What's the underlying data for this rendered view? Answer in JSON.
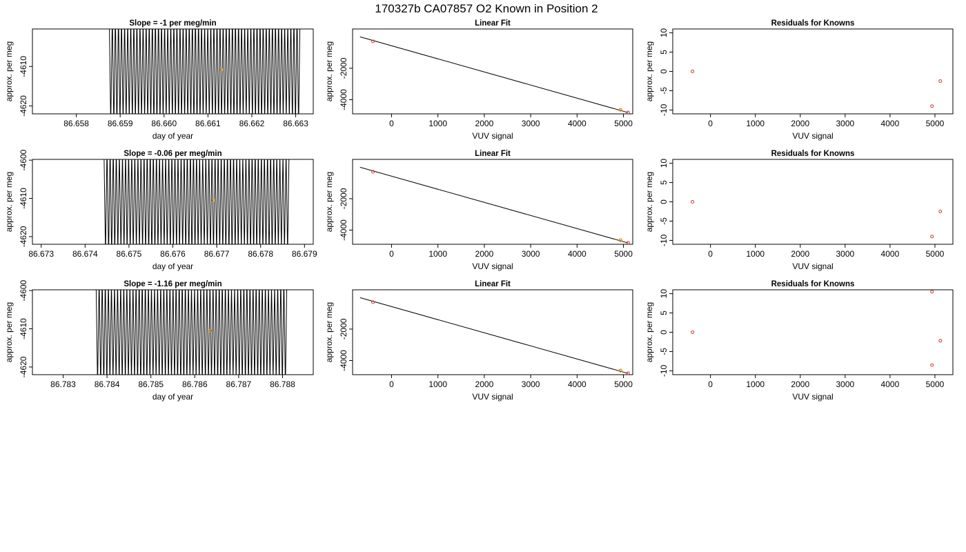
{
  "title": "170327b      CA07857   O2 Known in Position  2",
  "chart_data": [
    {
      "type": "line",
      "panel": "timeseries-1",
      "title": "Slope =  -1  per meg/min",
      "xlabel": "day of year",
      "ylabel": "approx. per meg",
      "xlim": [
        86.657,
        86.6634
      ],
      "ylim": [
        -4622,
        -4600.5
      ],
      "xticks": [
        "86.658",
        "86.659",
        "86.660",
        "86.661",
        "86.662",
        "86.663"
      ],
      "yticks": [
        "-4610",
        "-4620"
      ],
      "signal": {
        "start": 86.65875,
        "end": 86.6631,
        "center": -4611,
        "amplitude": 12,
        "cycles": 62
      },
      "marker": {
        "x": 86.6613,
        "y": -4610.8,
        "color": "#e69a00"
      }
    },
    {
      "type": "line",
      "panel": "timeseries-2",
      "title": "Slope =  -0.06  per meg/min",
      "xlabel": "day of year",
      "ylabel": "approx. per meg",
      "xlim": [
        86.6728,
        86.6792
      ],
      "ylim": [
        -4622,
        -4599.8
      ],
      "xticks": [
        "86.673",
        "86.674",
        "86.675",
        "86.676",
        "86.677",
        "86.678",
        "86.679"
      ],
      "yticks": [
        "-4600",
        "-4610",
        "-4620"
      ],
      "signal": {
        "start": 86.67443,
        "end": 86.67865,
        "center": -4611,
        "amplitude": 12,
        "cycles": 60
      },
      "marker": {
        "x": 86.67692,
        "y": -4610.5,
        "color": "#e69a00"
      }
    },
    {
      "type": "line",
      "panel": "timeseries-3",
      "title": "Slope =  -1.16  per meg/min",
      "xlabel": "day of year",
      "ylabel": "approx. per meg",
      "xlim": [
        86.7823,
        86.7887
      ],
      "ylim": [
        -4622,
        -4599.8
      ],
      "xticks": [
        "86.783",
        "86.784",
        "86.785",
        "86.786",
        "86.787",
        "86.788"
      ],
      "yticks": [
        "-4600",
        "-4610",
        "-4620"
      ],
      "signal": {
        "start": 86.78375,
        "end": 86.7881,
        "center": -4611,
        "amplitude": 12,
        "cycles": 62
      },
      "marker": {
        "x": 86.78635,
        "y": -4610.5,
        "color": "#e69a00"
      }
    },
    {
      "type": "scatter",
      "panel": "fit-1",
      "title": "Linear Fit",
      "xlabel": "VUV signal",
      "ylabel": "approx. per meg",
      "xlim": [
        -840,
        5200
      ],
      "ylim": [
        -4900,
        500
      ],
      "xticks": [
        "0",
        "1000",
        "2000",
        "3000",
        "4000",
        "5000"
      ],
      "yticks": [
        "-2000",
        "-4000"
      ],
      "line": [
        [
          -680,
          0
        ],
        [
          5100,
          -4820
        ]
      ],
      "points": [
        {
          "x": -400,
          "y": -290,
          "color": "#cc3333"
        },
        {
          "x": 4935,
          "y": -4640,
          "color": "#cc3333"
        },
        {
          "x": 4940,
          "y": -4640,
          "color": "#e69a00"
        },
        {
          "x": 5100,
          "y": -4810,
          "color": "#cc3333"
        }
      ]
    },
    {
      "type": "scatter",
      "panel": "fit-2",
      "title": "Linear Fit",
      "xlabel": "VUV signal",
      "ylabel": "approx. per meg",
      "xlim": [
        -840,
        5200
      ],
      "ylim": [
        -4900,
        500
      ],
      "xticks": [
        "0",
        "1000",
        "2000",
        "3000",
        "4000",
        "5000"
      ],
      "yticks": [
        "-2000",
        "-4000"
      ],
      "line": [
        [
          -680,
          0
        ],
        [
          5100,
          -4820
        ]
      ],
      "points": [
        {
          "x": -400,
          "y": -290,
          "color": "#cc3333"
        },
        {
          "x": 4935,
          "y": -4640,
          "color": "#cc3333"
        },
        {
          "x": 4940,
          "y": -4640,
          "color": "#e69a00"
        },
        {
          "x": 5100,
          "y": -4810,
          "color": "#cc3333"
        }
      ]
    },
    {
      "type": "scatter",
      "panel": "fit-3",
      "title": "Linear Fit",
      "xlabel": "VUV signal",
      "ylabel": "approx. per meg",
      "xlim": [
        -840,
        5200
      ],
      "ylim": [
        -4900,
        500
      ],
      "xticks": [
        "0",
        "1000",
        "2000",
        "3000",
        "4000",
        "5000"
      ],
      "yticks": [
        "-2000",
        "-4000"
      ],
      "line": [
        [
          -680,
          0
        ],
        [
          5100,
          -4820
        ]
      ],
      "points": [
        {
          "x": -400,
          "y": -290,
          "color": "#cc3333"
        },
        {
          "x": 4935,
          "y": -4640,
          "color": "#cc3333"
        },
        {
          "x": 4940,
          "y": -4640,
          "color": "#e69a00"
        },
        {
          "x": 5100,
          "y": -4810,
          "color": "#cc3333"
        }
      ]
    },
    {
      "type": "scatter",
      "panel": "residuals-1",
      "title": "Residuals for Knowns",
      "xlabel": "VUV signal",
      "ylabel": "approx. per meg",
      "xlim": [
        -840,
        5400
      ],
      "ylim": [
        -11,
        11
      ],
      "xticks": [
        "0",
        "1000",
        "2000",
        "3000",
        "4000",
        "5000"
      ],
      "yticks": [
        "10",
        "5",
        "0",
        "-5",
        "-10"
      ],
      "points": [
        {
          "x": -400,
          "y": 0,
          "color": "#cc3333"
        },
        {
          "x": 4935,
          "y": -9,
          "color": "#cc3333"
        },
        {
          "x": 5120,
          "y": -2.5,
          "color": "#cc3333"
        }
      ]
    },
    {
      "type": "scatter",
      "panel": "residuals-2",
      "title": "Residuals for Knowns",
      "xlabel": "VUV signal",
      "ylabel": "approx. per meg",
      "xlim": [
        -840,
        5400
      ],
      "ylim": [
        -11,
        11
      ],
      "xticks": [
        "0",
        "1000",
        "2000",
        "3000",
        "4000",
        "5000"
      ],
      "yticks": [
        "10",
        "5",
        "0",
        "-5",
        "-10"
      ],
      "points": [
        {
          "x": -400,
          "y": 0,
          "color": "#cc3333"
        },
        {
          "x": 4935,
          "y": -9,
          "color": "#cc3333"
        },
        {
          "x": 5120,
          "y": -2.5,
          "color": "#cc3333"
        }
      ]
    },
    {
      "type": "scatter",
      "panel": "residuals-3",
      "title": "Residuals for Knowns",
      "xlabel": "VUV signal",
      "ylabel": "approx. per meg",
      "xlim": [
        -840,
        5400
      ],
      "ylim": [
        -11,
        11
      ],
      "xticks": [
        "0",
        "1000",
        "2000",
        "3000",
        "4000",
        "5000"
      ],
      "yticks": [
        "10",
        "5",
        "0",
        "-5",
        "-10"
      ],
      "points": [
        {
          "x": -400,
          "y": 0,
          "color": "#cc3333"
        },
        {
          "x": 4935,
          "y": 10.5,
          "color": "#cc3333"
        },
        {
          "x": 4935,
          "y": -8.5,
          "color": "#cc3333"
        },
        {
          "x": 5120,
          "y": -2.2,
          "color": "#cc3333"
        }
      ]
    }
  ]
}
